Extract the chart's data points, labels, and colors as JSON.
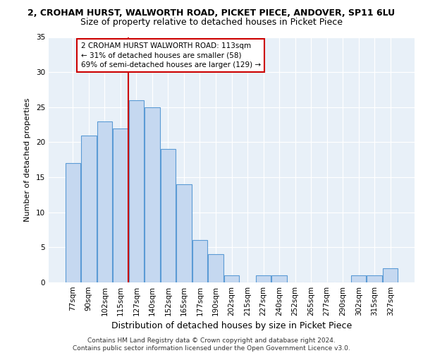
{
  "title1": "2, CROHAM HURST, WALWORTH ROAD, PICKET PIECE, ANDOVER, SP11 6LU",
  "title2": "Size of property relative to detached houses in Picket Piece",
  "xlabel": "Distribution of detached houses by size in Picket Piece",
  "ylabel": "Number of detached properties",
  "categories": [
    "77sqm",
    "90sqm",
    "102sqm",
    "115sqm",
    "127sqm",
    "140sqm",
    "152sqm",
    "165sqm",
    "177sqm",
    "190sqm",
    "202sqm",
    "215sqm",
    "227sqm",
    "240sqm",
    "252sqm",
    "265sqm",
    "277sqm",
    "290sqm",
    "302sqm",
    "315sqm",
    "327sqm"
  ],
  "values": [
    17,
    21,
    23,
    22,
    26,
    25,
    19,
    14,
    6,
    4,
    1,
    0,
    1,
    1,
    0,
    0,
    0,
    0,
    1,
    1,
    2
  ],
  "bar_color": "#c5d8f0",
  "bar_edge_color": "#5b9bd5",
  "vline_x": 3.5,
  "vline_color": "#cc0000",
  "annotation_text": "2 CROHAM HURST WALWORTH ROAD: 113sqm\n← 31% of detached houses are smaller (58)\n69% of semi-detached houses are larger (129) →",
  "annotation_box_color": "#ffffff",
  "annotation_box_edge": "#cc0000",
  "ylim": [
    0,
    35
  ],
  "yticks": [
    0,
    5,
    10,
    15,
    20,
    25,
    30,
    35
  ],
  "footer": "Contains HM Land Registry data © Crown copyright and database right 2024.\nContains public sector information licensed under the Open Government Licence v3.0.",
  "bg_color": "#e8f0f8",
  "grid_color": "#ffffff",
  "title1_fontsize": 9,
  "title2_fontsize": 9,
  "xlabel_fontsize": 9,
  "ylabel_fontsize": 8,
  "tick_fontsize": 7.5,
  "annotation_fontsize": 7.5,
  "footer_fontsize": 6.5
}
